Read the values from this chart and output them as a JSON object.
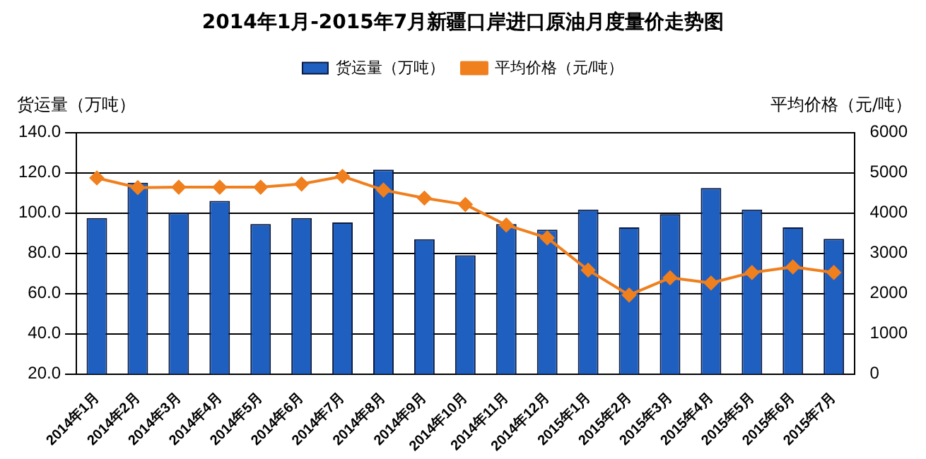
{
  "chart_data": {
    "type": "bar",
    "title": "2014年1月-2015年7月新疆口岸进口原油月度量价走势图",
    "categories": [
      "2014年1月",
      "2014年2月",
      "2014年3月",
      "2014年4月",
      "2014年5月",
      "2014年6月",
      "2014年7月",
      "2014年8月",
      "2014年9月",
      "2014年10月",
      "2014年11月",
      "2014年12月",
      "2015年1月",
      "2015年2月",
      "2015年3月",
      "2015年4月",
      "2015年5月",
      "2015年6月",
      "2015年7月"
    ],
    "series": [
      {
        "name": "货运量（万吨）",
        "color": "#1f5fc0",
        "values": [
          97.5,
          115,
          100,
          106,
          94.5,
          97.5,
          95.3,
          121.5,
          87,
          79,
          94.5,
          91.7,
          101.7,
          92.8,
          99.4,
          112.4,
          101.7,
          92.8,
          87.1
        ]
      },
      {
        "name": "平均价格（元/吨）",
        "type": "line",
        "axis": "y2",
        "color": "#f07f1e",
        "marker": "diamond",
        "values": [
          4870,
          4630,
          4640,
          4640,
          4640,
          4720,
          4910,
          4570,
          4370,
          4210,
          3700,
          3380,
          2580,
          1960,
          2390,
          2260,
          2520,
          2660,
          2520
        ]
      }
    ],
    "ylabel": "货运量（万吨）",
    "y2label": "平均价格（元/吨）",
    "ylim": [
      20,
      140
    ],
    "yticks": [
      {
        "value": 20,
        "label": "20.0"
      },
      {
        "value": 40,
        "label": "40.0"
      },
      {
        "value": 60,
        "label": "60.0"
      },
      {
        "value": 80,
        "label": "80.0"
      },
      {
        "value": 100,
        "label": "100.0"
      },
      {
        "value": 120,
        "label": "120.0"
      },
      {
        "value": 140,
        "label": "140.0"
      }
    ],
    "y2lim": [
      0,
      6000
    ],
    "y2ticks": [
      0,
      1000,
      2000,
      3000,
      4000,
      5000,
      6000
    ],
    "grid": "y",
    "legend": "top"
  }
}
